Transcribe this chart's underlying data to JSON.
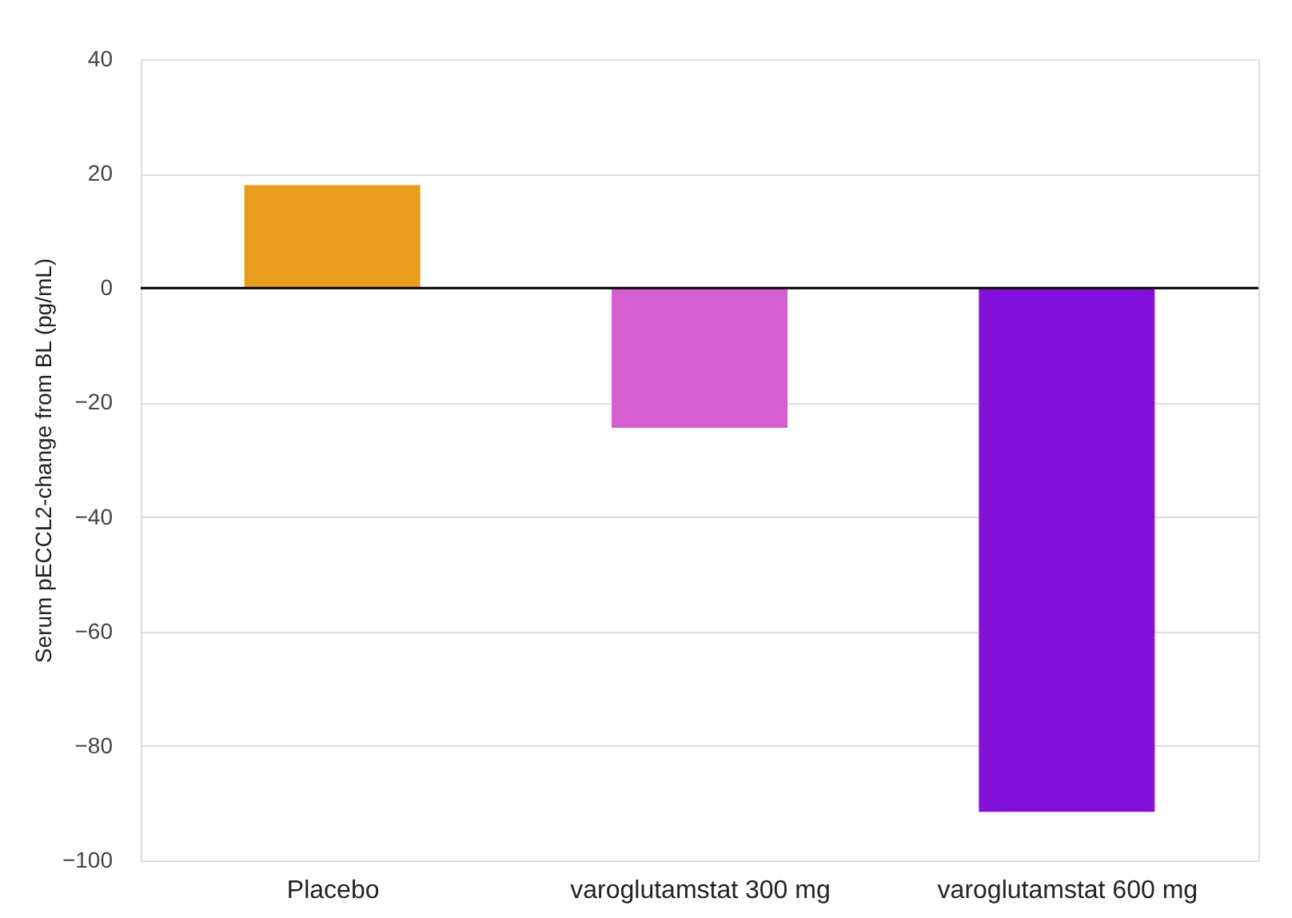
{
  "chart_data": {
    "type": "bar",
    "ylabel": "Serum pECCL2-change from BL (pg/mL)",
    "categories": [
      "Placebo",
      "varoglutamstat 300 mg",
      "varoglutamstat 600 mg"
    ],
    "values": [
      18,
      -24.4,
      -91.5
    ],
    "colors": [
      "#e89c1c",
      "#d55fd0",
      "#8510dc"
    ],
    "ylim": [
      -100,
      40
    ],
    "yticks": [
      -100,
      -80,
      -60,
      -40,
      -20,
      0,
      20,
      40
    ],
    "grid": "y",
    "ref_lines": [
      {
        "axis": "y",
        "value": 0,
        "color": "#000000"
      }
    ]
  }
}
